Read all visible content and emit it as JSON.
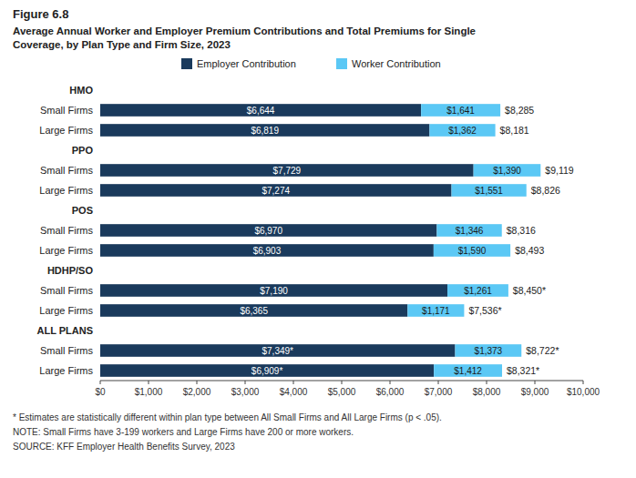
{
  "chart_data": {
    "type": "bar",
    "orientation": "horizontal",
    "stacked": true,
    "data_labels": true,
    "legend": "top",
    "grid": false,
    "title": "Figure 6.8",
    "subtitle": "Average Annual Worker and Employer Premium Contributions and Total Premiums for Single\nCoverage, by Plan Type and Firm Size, 2023",
    "categories": [
      "HMO",
      "Small Firms",
      "Large Firms",
      "PPO",
      "Small Firms",
      "Large Firms",
      "POS",
      "Small Firms",
      "Large Firms",
      "HDHP/SO",
      "Small Firms",
      "Large Firms",
      "ALL PLANS",
      "Small Firms",
      "Large Firms"
    ],
    "series": [
      {
        "name": "Employer Contribution",
        "color": "#1a3a5c",
        "values": [
          null,
          6644,
          6819,
          null,
          7729,
          7274,
          null,
          6970,
          6903,
          null,
          7190,
          6365,
          null,
          7349,
          6909
        ],
        "value_labels": [
          null,
          "$6,644",
          "$6,819",
          null,
          "$7,729",
          "$7,274",
          null,
          "$6,970",
          "$6,903",
          null,
          "$7,190",
          "$6,365",
          null,
          "$7,349*",
          "$6,909*"
        ]
      },
      {
        "name": "Worker Contribution",
        "color": "#5bc8f5",
        "values": [
          null,
          1641,
          1362,
          null,
          1390,
          1551,
          null,
          1346,
          1590,
          null,
          1261,
          1171,
          null,
          1373,
          1412
        ],
        "value_labels": [
          null,
          "$1,641",
          "$1,362",
          null,
          "$1,390",
          "$1,551",
          null,
          "$1,346",
          "$1,590",
          null,
          "$1,261",
          "$1,171",
          null,
          "$1,373",
          "$1,412"
        ]
      }
    ],
    "totals": [
      null,
      8285,
      8181,
      null,
      9119,
      8826,
      null,
      8316,
      8493,
      null,
      8450,
      7536,
      null,
      8722,
      8321
    ],
    "total_labels": [
      null,
      "$8,285",
      "$8,181",
      null,
      "$9,119",
      "$8,826",
      null,
      "$8,316",
      "$8,493",
      null,
      "$8,450*",
      "$7,536*",
      null,
      "$8,722*",
      "$8,321*"
    ],
    "xlim": [
      0,
      10000
    ],
    "xticks": [
      {
        "value": 0,
        "label": "$0"
      },
      {
        "value": 1000,
        "label": "$1,000"
      },
      {
        "value": 2000,
        "label": "$2,000"
      },
      {
        "value": 3000,
        "label": "$3,000"
      },
      {
        "value": 4000,
        "label": "$4,000"
      },
      {
        "value": 5000,
        "label": "$5,000"
      },
      {
        "value": 6000,
        "label": "$6,000"
      },
      {
        "value": 7000,
        "label": "$7,000"
      },
      {
        "value": 8000,
        "label": "$8,000"
      },
      {
        "value": 9000,
        "label": "$9,000"
      },
      {
        "value": 10000,
        "label": "$10,000"
      }
    ],
    "notes": [
      "* Estimates are statistically different within plan type between All Small Firms and All Large Firms (p < .05).",
      "NOTE:  Small Firms have 3-199 workers and Large Firms have 200 or more workers.",
      "SOURCE:  KFF Employer Health Benefits Survey, 2023"
    ]
  }
}
